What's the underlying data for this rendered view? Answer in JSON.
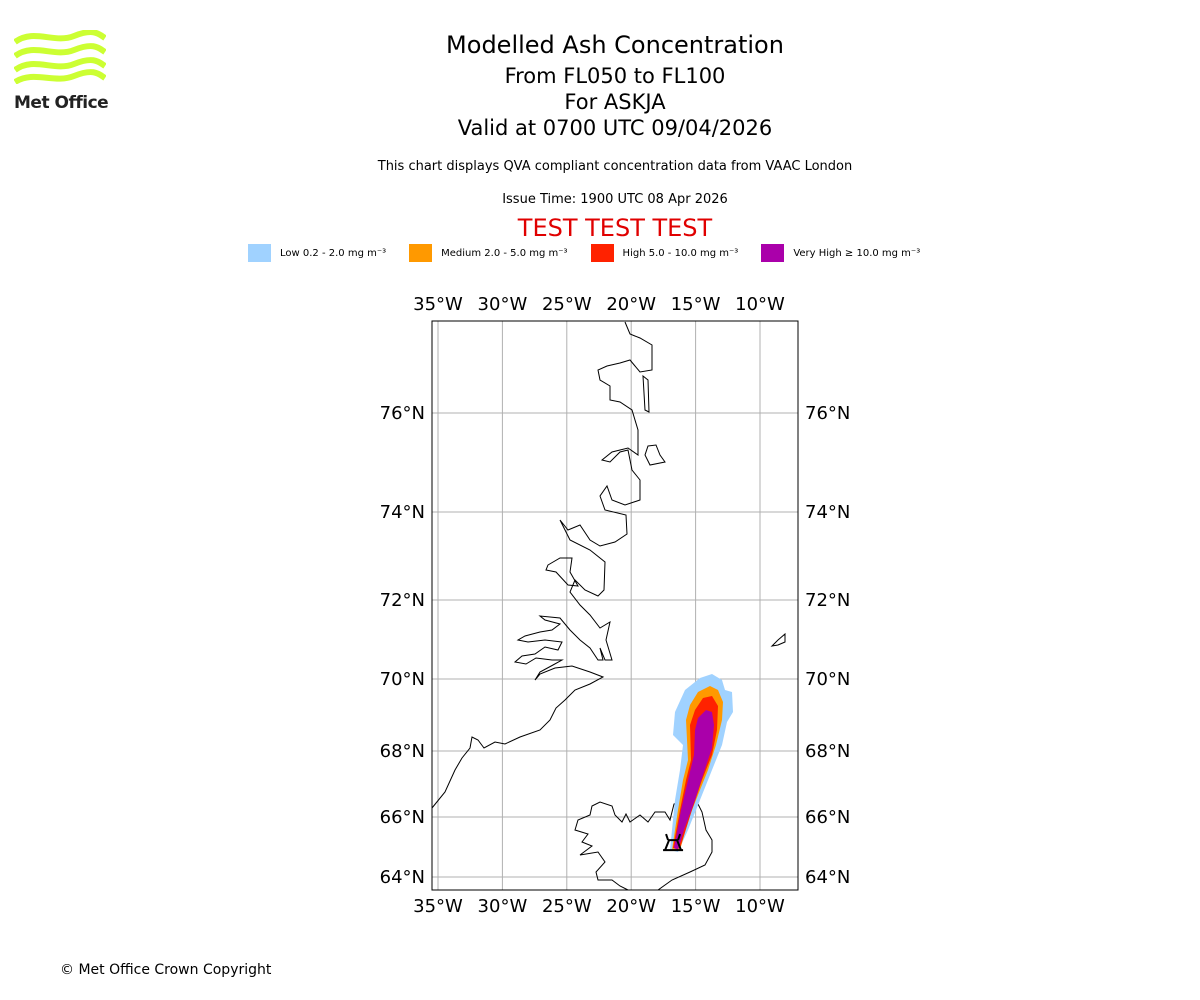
{
  "logo": {
    "text": "Met Office",
    "color": "#ccff33"
  },
  "header": {
    "title": "Modelled Ash Concentration",
    "levels": "From FL050 to FL100",
    "volcano": "For ASKJA",
    "valid": "Valid at 0700 UTC 09/04/2026",
    "description": "This chart displays QVA compliant concentration data from VAAC London",
    "issue_time": "Issue Time: 1900 UTC 08 Apr 2026",
    "test_banner": "TEST TEST TEST",
    "test_color": "#e00000"
  },
  "legend": [
    {
      "label": "Low 0.2 - 2.0 mg m⁻³",
      "color": "#a0d2ff"
    },
    {
      "label": "Medium 2.0 - 5.0 mg m⁻³",
      "color": "#ff9900"
    },
    {
      "label": "High 5.0 - 10.0 mg m⁻³",
      "color": "#ff2200"
    },
    {
      "label": "Very High ≥ 10.0 mg m⁻³",
      "color": "#aa00aa"
    }
  ],
  "chart_data": {
    "type": "map",
    "lon_ticks": [
      -35,
      -30,
      -25,
      -20,
      -15,
      -10
    ],
    "lon_labels": [
      "35°W",
      "30°W",
      "25°W",
      "20°W",
      "15°W",
      "10°W"
    ],
    "lat_ticks": [
      76,
      74,
      72,
      70,
      68,
      66,
      64
    ],
    "lat_labels": [
      "76°N",
      "74°N",
      "72°N",
      "70°N",
      "68°N",
      "66°N",
      "64°N"
    ],
    "grid": true,
    "volcano_marker": {
      "lat": 65.03,
      "lon": -16.75
    }
  },
  "footer": {
    "copyright": "© Met Office Crown Copyright"
  }
}
